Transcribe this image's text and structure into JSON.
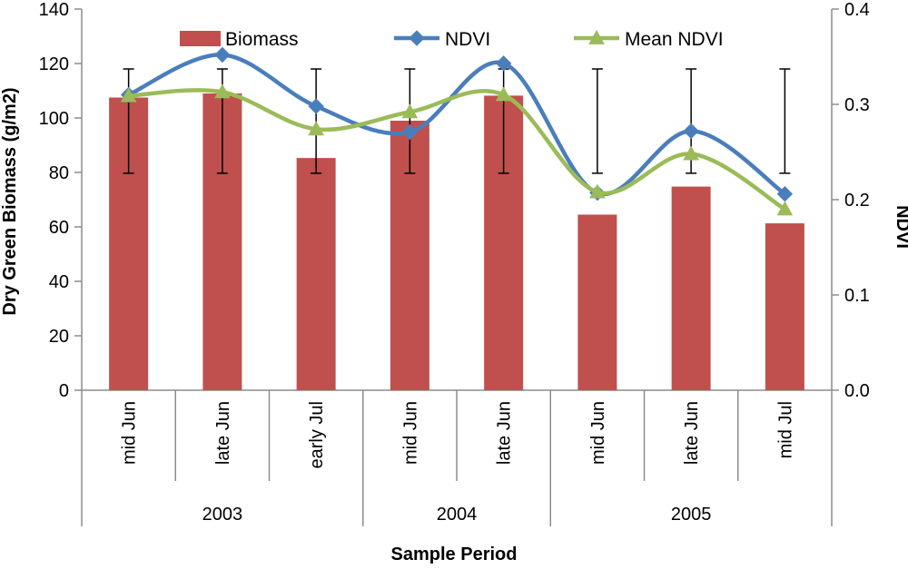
{
  "chart_data": {
    "type": "bar",
    "title": "",
    "xlabel": "Sample Period",
    "ylabel": "Dry Green Biomass (g/m2)",
    "y2label": "NDVI",
    "ylim": [
      0,
      140
    ],
    "y2lim": [
      0,
      0.4
    ],
    "y_ticks": [
      "0",
      "20",
      "40",
      "60",
      "80",
      "100",
      "120",
      "140"
    ],
    "y2_ticks": [
      "0.0",
      "0.1",
      "0.2",
      "0.3",
      "0.4"
    ],
    "categories": [
      "mid Jun",
      "late Jun",
      "early Jul",
      "mid Jun",
      "late Jun",
      "mid Jun",
      "late Jun",
      "mid Jul"
    ],
    "groups": [
      {
        "label": "2003",
        "count": 3
      },
      {
        "label": "2004",
        "count": 2
      },
      {
        "label": "2005",
        "count": 3
      }
    ],
    "series": [
      {
        "name": "Biomass",
        "type": "bar",
        "axis": "left",
        "color": "#c0504d",
        "values": [
          107.5,
          109,
          85.3,
          99,
          108.2,
          64.5,
          74.8,
          61.3
        ],
        "error_low": [
          79.7,
          79.7,
          79.7,
          79.7,
          79.7,
          79.7,
          79.7,
          79.7
        ],
        "error_high": [
          118,
          118,
          118,
          118,
          118,
          118,
          118,
          118
        ]
      },
      {
        "name": "NDVI",
        "type": "line",
        "axis": "right",
        "color": "#4a7ebb",
        "marker": "diamond",
        "values": [
          0.31,
          0.352,
          0.298,
          0.271,
          0.343,
          0.207,
          0.272,
          0.206
        ]
      },
      {
        "name": "Mean NDVI",
        "type": "line",
        "axis": "right",
        "color": "#9bbb59",
        "marker": "triangle",
        "values": [
          0.309,
          0.313,
          0.274,
          0.292,
          0.31,
          0.208,
          0.248,
          0.19
        ]
      }
    ],
    "legend": {
      "position": "top",
      "entries": [
        "Biomass",
        "NDVI",
        "Mean NDVI"
      ]
    },
    "grid": false
  }
}
